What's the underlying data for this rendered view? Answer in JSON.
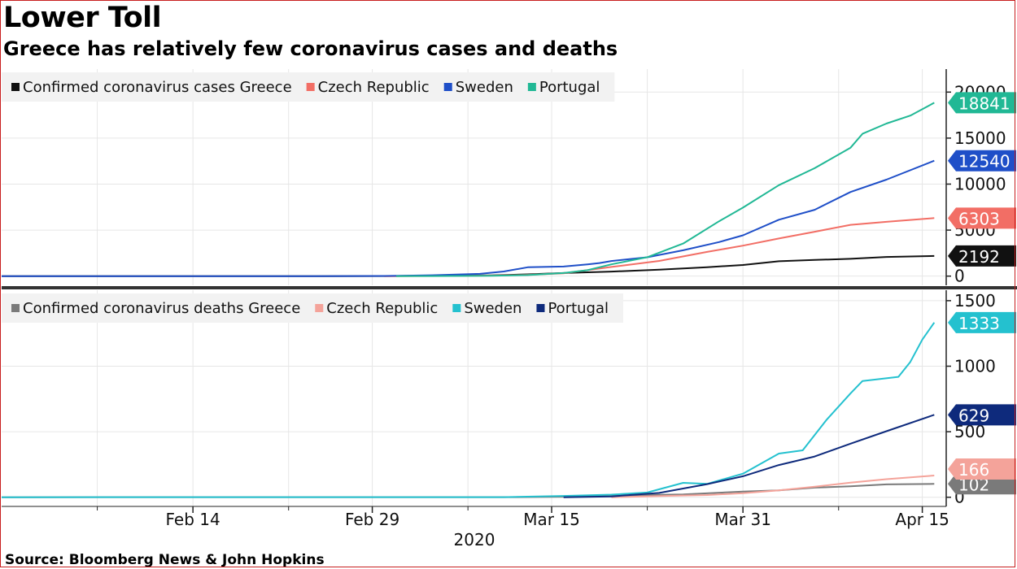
{
  "title": "Lower Toll",
  "subtitle": "Greece has relatively few coronavirus cases and deaths",
  "source": "Source: Bloomberg News & John Hopkins",
  "chart_data": [
    {
      "type": "line",
      "x_ticks": [
        {
          "date": "2020-02-14",
          "label": "Feb 14"
        },
        {
          "date": "2020-02-29",
          "label": "Feb 29"
        },
        {
          "date": "2020-03-15",
          "label": "Mar 15"
        },
        {
          "date": "2020-03-31",
          "label": "Mar 31"
        },
        {
          "date": "2020-04-15",
          "label": "Apr 15"
        }
      ],
      "x_year_label": "2020",
      "xlim": [
        "2020-01-29",
        "2020-04-17"
      ],
      "ylim": [
        -1000,
        22500
      ],
      "y_ticks": [
        0,
        5000,
        10000,
        15000,
        20000
      ],
      "legend_position": "top-left",
      "grid": true,
      "series": [
        {
          "name": "Confirmed coronavirus cases Greece",
          "color": "#111111",
          "last_label": "2192",
          "points": [
            [
              "2020-01-29",
              0
            ],
            [
              "2020-02-25",
              0
            ],
            [
              "2020-03-01",
              7
            ],
            [
              "2020-03-05",
              31
            ],
            [
              "2020-03-10",
              89
            ],
            [
              "2020-03-13",
              190
            ],
            [
              "2020-03-16",
              331
            ],
            [
              "2020-03-20",
              495
            ],
            [
              "2020-03-24",
              695
            ],
            [
              "2020-03-28",
              966
            ],
            [
              "2020-03-31",
              1212
            ],
            [
              "2020-04-03",
              1613
            ],
            [
              "2020-04-06",
              1755
            ],
            [
              "2020-04-09",
              1884
            ],
            [
              "2020-04-12",
              2081
            ],
            [
              "2020-04-16",
              2192
            ]
          ]
        },
        {
          "name": "Czech Republic",
          "color": "#f26e65",
          "last_label": "6303",
          "points": [
            [
              "2020-03-01",
              0
            ],
            [
              "2020-03-05",
              12
            ],
            [
              "2020-03-10",
              63
            ],
            [
              "2020-03-13",
              141
            ],
            [
              "2020-03-16",
              298
            ],
            [
              "2020-03-20",
              995
            ],
            [
              "2020-03-24",
              1654
            ],
            [
              "2020-03-28",
              2631
            ],
            [
              "2020-03-31",
              3308
            ],
            [
              "2020-04-03",
              4091
            ],
            [
              "2020-04-06",
              4822
            ],
            [
              "2020-04-09",
              5569
            ],
            [
              "2020-04-12",
              5902
            ],
            [
              "2020-04-16",
              6303
            ]
          ]
        },
        {
          "name": "Sweden",
          "color": "#1f4fc8",
          "last_label": "12540",
          "points": [
            [
              "2020-01-29",
              0
            ],
            [
              "2020-02-24",
              0
            ],
            [
              "2020-03-01",
              14
            ],
            [
              "2020-03-05",
              94
            ],
            [
              "2020-03-09",
              248
            ],
            [
              "2020-03-11",
              500
            ],
            [
              "2020-03-13",
              961
            ],
            [
              "2020-03-16",
              1040
            ],
            [
              "2020-03-18",
              1279
            ],
            [
              "2020-03-19",
              1423
            ],
            [
              "2020-03-20",
              1639
            ],
            [
              "2020-03-23",
              2046
            ],
            [
              "2020-03-26",
              2806
            ],
            [
              "2020-03-29",
              3700
            ],
            [
              "2020-03-31",
              4435
            ],
            [
              "2020-04-03",
              6131
            ],
            [
              "2020-04-06",
              7206
            ],
            [
              "2020-04-09",
              9141
            ],
            [
              "2020-04-12",
              10483
            ],
            [
              "2020-04-16",
              12540
            ]
          ]
        },
        {
          "name": "Portugal",
          "color": "#21b895",
          "last_label": "18841",
          "points": [
            [
              "2020-03-02",
              0
            ],
            [
              "2020-03-05",
              5
            ],
            [
              "2020-03-10",
              41
            ],
            [
              "2020-03-13",
              112
            ],
            [
              "2020-03-16",
              331
            ],
            [
              "2020-03-18",
              642
            ],
            [
              "2020-03-20",
              1280
            ],
            [
              "2020-03-23",
              2060
            ],
            [
              "2020-03-26",
              3544
            ],
            [
              "2020-03-29",
              5962
            ],
            [
              "2020-03-31",
              7443
            ],
            [
              "2020-04-03",
              9886
            ],
            [
              "2020-04-06",
              11730
            ],
            [
              "2020-04-09",
              13956
            ],
            [
              "2020-04-10",
              15472
            ],
            [
              "2020-04-12",
              16585
            ],
            [
              "2020-04-14",
              17448
            ],
            [
              "2020-04-16",
              18841
            ]
          ]
        }
      ]
    },
    {
      "type": "line",
      "x_ticks": [
        {
          "date": "2020-02-14",
          "label": "Feb 14"
        },
        {
          "date": "2020-02-29",
          "label": "Feb 29"
        },
        {
          "date": "2020-03-15",
          "label": "Mar 15"
        },
        {
          "date": "2020-03-31",
          "label": "Mar 31"
        },
        {
          "date": "2020-04-15",
          "label": "Apr 15"
        }
      ],
      "x_year_label": "2020",
      "xlim": [
        "2020-01-29",
        "2020-04-17"
      ],
      "ylim": [
        -70,
        1580
      ],
      "y_ticks": [
        0,
        500,
        1000,
        1500
      ],
      "legend_position": "top-left",
      "grid": true,
      "series": [
        {
          "name": "Confirmed coronavirus deaths Greece",
          "color": "#7a7a7a",
          "last_label": "102",
          "points": [
            [
              "2020-01-29",
              0
            ],
            [
              "2020-03-12",
              1
            ],
            [
              "2020-03-18",
              5
            ],
            [
              "2020-03-22",
              15
            ],
            [
              "2020-03-26",
              22
            ],
            [
              "2020-03-31",
              43
            ],
            [
              "2020-04-03",
              53
            ],
            [
              "2020-04-06",
              73
            ],
            [
              "2020-04-09",
              83
            ],
            [
              "2020-04-12",
              98
            ],
            [
              "2020-04-16",
              102
            ]
          ]
        },
        {
          "name": "Czech Republic",
          "color": "#f4a39a",
          "last_label": "166",
          "points": [
            [
              "2020-03-20",
              0
            ],
            [
              "2020-03-24",
              9
            ],
            [
              "2020-03-28",
              17
            ],
            [
              "2020-03-31",
              31
            ],
            [
              "2020-04-03",
              53
            ],
            [
              "2020-04-06",
              80
            ],
            [
              "2020-04-09",
              112
            ],
            [
              "2020-04-12",
              138
            ],
            [
              "2020-04-16",
              166
            ]
          ]
        },
        {
          "name": "Sweden",
          "color": "#24c1cf",
          "last_label": "1333",
          "points": [
            [
              "2020-01-29",
              0
            ],
            [
              "2020-03-11",
              1
            ],
            [
              "2020-03-16",
              10
            ],
            [
              "2020-03-20",
              20
            ],
            [
              "2020-03-23",
              36
            ],
            [
              "2020-03-26",
              110
            ],
            [
              "2020-03-28",
              102
            ],
            [
              "2020-03-31",
              180
            ],
            [
              "2020-04-03",
              333
            ],
            [
              "2020-04-05",
              358
            ],
            [
              "2020-04-07",
              591
            ],
            [
              "2020-04-09",
              793
            ],
            [
              "2020-04-10",
              887
            ],
            [
              "2020-04-13",
              919
            ],
            [
              "2020-04-14",
              1033
            ],
            [
              "2020-04-15",
              1203
            ],
            [
              "2020-04-16",
              1333
            ]
          ]
        },
        {
          "name": "Portugal",
          "color": "#0e2a7c",
          "last_label": "629",
          "points": [
            [
              "2020-03-16",
              0
            ],
            [
              "2020-03-20",
              6
            ],
            [
              "2020-03-24",
              33
            ],
            [
              "2020-03-28",
              100
            ],
            [
              "2020-03-31",
              160
            ],
            [
              "2020-04-03",
              246
            ],
            [
              "2020-04-06",
              311
            ],
            [
              "2020-04-09",
              409
            ],
            [
              "2020-04-12",
              504
            ],
            [
              "2020-04-16",
              629
            ]
          ]
        }
      ]
    }
  ]
}
